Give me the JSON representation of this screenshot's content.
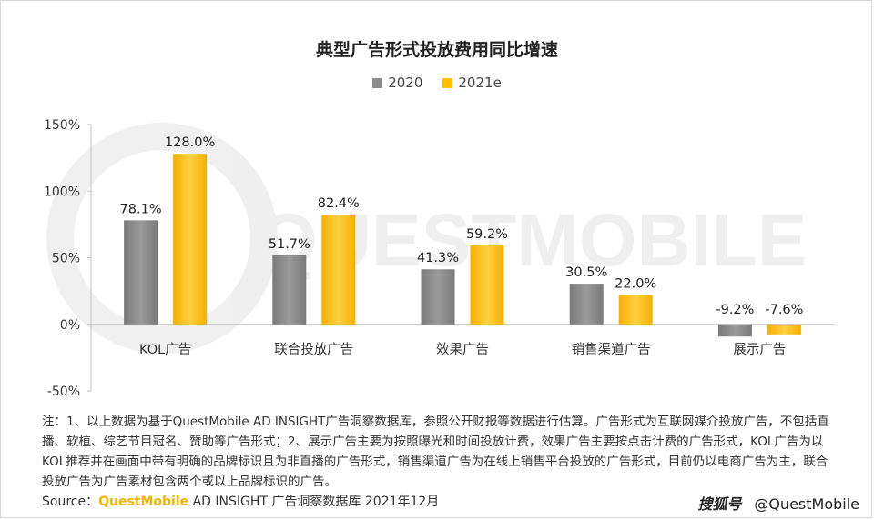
{
  "chart_data": {
    "type": "bar",
    "title": "典型广告形式投放费用同比增速",
    "categories": [
      "KOL广告",
      "联合投放广告",
      "效果广告",
      "销售渠道广告",
      "展示广告"
    ],
    "series": [
      {
        "name": "2020",
        "color": "#8c8c8c",
        "values": [
          78.1,
          51.7,
          41.3,
          30.5,
          -9.2
        ],
        "labels": [
          "78.1%",
          "51.7%",
          "41.3%",
          "30.5%",
          "-9.2%"
        ]
      },
      {
        "name": "2021e",
        "color": "#ffc000",
        "values": [
          128.0,
          82.4,
          59.2,
          22.0,
          -7.6
        ],
        "labels": [
          "128.0%",
          "82.4%",
          "59.2%",
          "22.0%",
          "-7.6%"
        ]
      }
    ],
    "ylim": [
      -50,
      150
    ],
    "yticks": [
      -50,
      0,
      50,
      100,
      150
    ],
    "ytick_labels": [
      "-50%",
      "0%",
      "50%",
      "100%",
      "150%"
    ],
    "legend_position": "top-center",
    "grid": false
  },
  "note": "注：1、以上数据为基于QuestMobile AD INSIGHT广告洞察数据库，参照公开财报等数据进行估算。广告形式为互联网媒介投放广告，不包括直播、软植、综艺节目冠名、赞助等广告形式；2、展示广告主要为按照曝光和时间投放计费，效果广告主要按点击计费的广告形式，KOL广告为以KOL推荐并在画面中带有明确的品牌标识且为非直播的广告形式，销售渠道广告为在线上销售平台投放的广告形式，目前仍以电商广告为主，联合投放广告为广告素材包含两个或以上品牌标识的广告。",
  "source": {
    "prefix": "Source：",
    "brand": "QuestMobile",
    "rest": " AD INSIGHT 广告洞察数据库 2021年12月"
  },
  "watermark": {
    "logo": "搜狐号",
    "handle": "@QuestMobile"
  },
  "background_watermark": "QUESTMOBILE"
}
